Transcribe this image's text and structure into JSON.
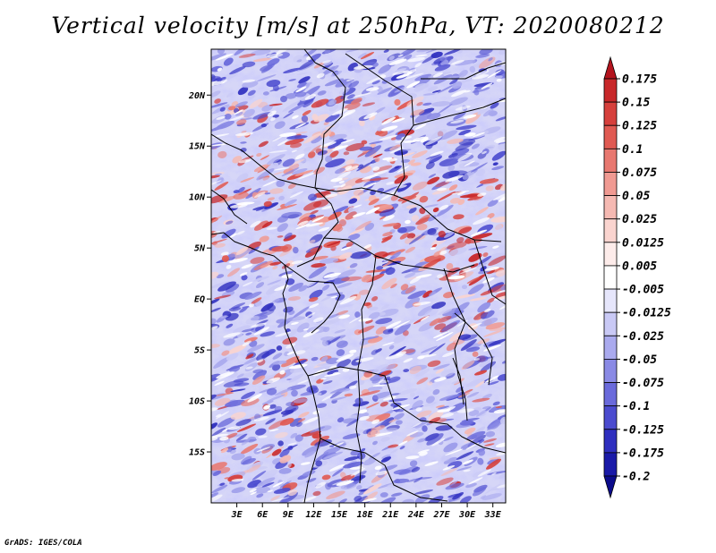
{
  "title": "Vertical velocity [m/s] at 250hPa, VT: 2020080212",
  "credit": "GrADS: IGES/COLA",
  "map": {
    "region": "Central Africa",
    "variable": "vertical velocity",
    "units": "m/s",
    "level": "250hPa",
    "valid_time": "2020080212",
    "lon_range": [
      0,
      34.5
    ],
    "lat_range": [
      -20,
      24.5
    ],
    "lat_labels": [
      {
        "value": 20,
        "label": "20N"
      },
      {
        "value": 15,
        "label": "15N"
      },
      {
        "value": 10,
        "label": "10N"
      },
      {
        "value": 5,
        "label": "5N"
      },
      {
        "value": 0,
        "label": "EQ"
      },
      {
        "value": -5,
        "label": "5S"
      },
      {
        "value": -10,
        "label": "10S"
      },
      {
        "value": -15,
        "label": "15S"
      }
    ],
    "lon_labels": [
      {
        "value": 3,
        "label": "3E"
      },
      {
        "value": 6,
        "label": "6E"
      },
      {
        "value": 9,
        "label": "9E"
      },
      {
        "value": 12,
        "label": "12E"
      },
      {
        "value": 15,
        "label": "15E"
      },
      {
        "value": 18,
        "label": "18E"
      },
      {
        "value": 21,
        "label": "21E"
      },
      {
        "value": 24,
        "label": "24E"
      },
      {
        "value": 27,
        "label": "27E"
      },
      {
        "value": 30,
        "label": "30E"
      },
      {
        "value": 33,
        "label": "33E"
      }
    ]
  },
  "colorbar": {
    "labels": [
      "0.175",
      "0.15",
      "0.125",
      "0.1",
      "0.075",
      "0.05",
      "0.025",
      "0.0125",
      "0.005",
      "-0.005",
      "-0.0125",
      "-0.025",
      "-0.05",
      "-0.075",
      "-0.1",
      "-0.125",
      "-0.175",
      "-0.2"
    ],
    "colors": [
      "#b4141e",
      "#c8282a",
      "#d6403c",
      "#e05a52",
      "#e87870",
      "#f09a92",
      "#f5b9b2",
      "#fad4cf",
      "#fdecea",
      "#ffffff",
      "#e6e6fb",
      "#c9c9f5",
      "#aaaaee",
      "#8a8ae5",
      "#6a6adb",
      "#4b4bcf",
      "#2f2fbf",
      "#1a1aa8",
      "#0c0c8c"
    ]
  }
}
